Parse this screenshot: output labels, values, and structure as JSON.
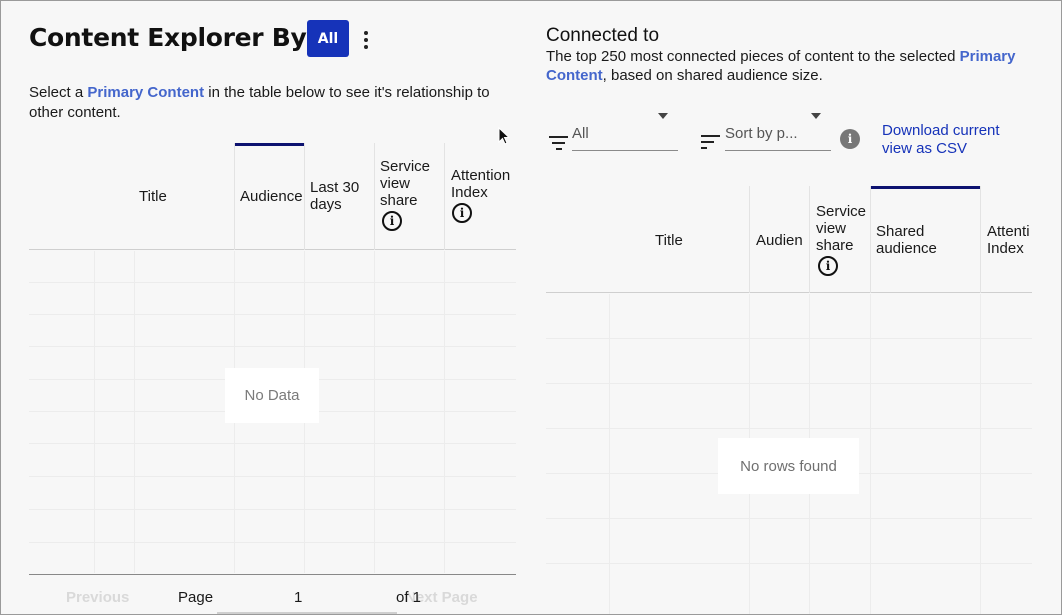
{
  "left": {
    "title": "Content Explorer By",
    "all_button": "All",
    "intro": {
      "before": "Select a ",
      "link": "Primary Content",
      "after": " in the table below to see it's relationship to other content."
    },
    "columns": {
      "title": "Title",
      "audience": "Audience",
      "last30": "Last 30 days",
      "service_share": "Service view share",
      "attention": "Attention Index"
    },
    "empty": "No Data",
    "pagination": {
      "previous": "Previous",
      "page_label": "Page",
      "page_value": "1",
      "of_label": "of 1",
      "next": "Next Page"
    }
  },
  "right": {
    "title": "Connected to",
    "desc": {
      "before": "The top 250 most connected pieces of content to the selected ",
      "link": "Primary Content",
      "after": ", based on shared audience size."
    },
    "filter_value": "All",
    "sort_placeholder": "Sort by p...",
    "csv_link": "Download current view as CSV",
    "columns": {
      "title": "Title",
      "audience": "Audien",
      "service_share": "Service view share",
      "shared": "Shared audience",
      "attention": "Attenti Index"
    },
    "empty": "No rows found"
  },
  "colors": {
    "accent": "#1633b9",
    "link": "#4466cc",
    "active_column": "#0d1270"
  }
}
